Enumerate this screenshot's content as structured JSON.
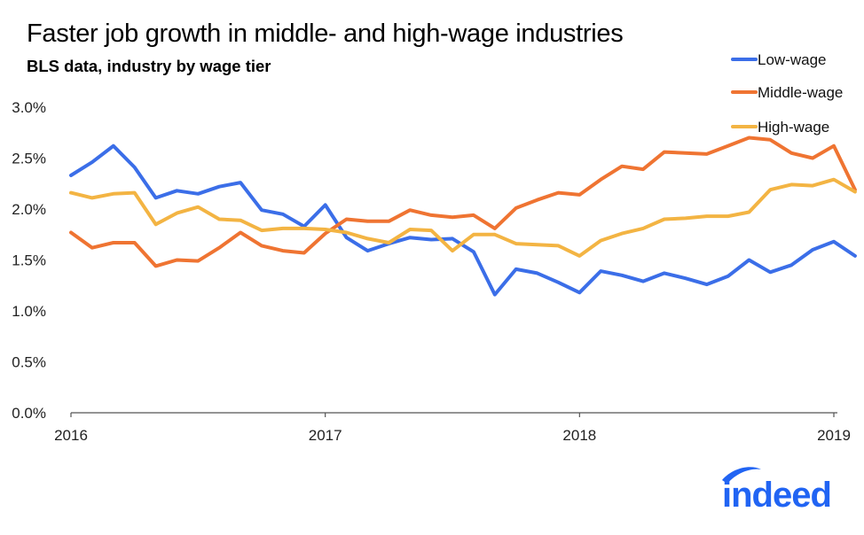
{
  "colors": {
    "low": "#3b6ee8",
    "middle": "#ef7432",
    "high": "#f3b443",
    "logo": "#2164f3"
  },
  "logo": {
    "text": "indeed"
  },
  "chart_data": {
    "type": "line",
    "title": "Faster job growth in middle- and high-wage industries",
    "subtitle": "BLS data, industry by wage tier",
    "xlabel": "",
    "ylabel": "",
    "ylim": [
      0,
      3.0
    ],
    "yticks": [
      0,
      0.5,
      1.0,
      1.5,
      2.0,
      2.5,
      3.0
    ],
    "ytick_labels": [
      "0.0%",
      "0.5%",
      "1.0%",
      "1.5%",
      "2.0%",
      "2.5%",
      "3.0%"
    ],
    "xticks": [
      0,
      12,
      24,
      36
    ],
    "xtick_labels": [
      "2016",
      "2017",
      "2018",
      "2019"
    ],
    "xlim": [
      0,
      37
    ],
    "legend_position": "top-right",
    "series": [
      {
        "name": "Low-wage",
        "color_key": "low",
        "values": [
          2.33,
          2.46,
          2.62,
          2.41,
          2.11,
          2.18,
          2.15,
          2.22,
          2.26,
          1.99,
          1.95,
          1.83,
          2.04,
          1.72,
          1.59,
          1.66,
          1.72,
          1.7,
          1.71,
          1.58,
          1.16,
          1.41,
          1.37,
          1.28,
          1.18,
          1.39,
          1.35,
          1.29,
          1.37,
          1.32,
          1.26,
          1.34,
          1.5,
          1.38,
          1.45,
          1.6,
          1.68,
          1.54
        ]
      },
      {
        "name": "Middle-wage",
        "color_key": "middle",
        "values": [
          1.77,
          1.62,
          1.67,
          1.67,
          1.44,
          1.5,
          1.49,
          1.62,
          1.77,
          1.64,
          1.59,
          1.57,
          1.76,
          1.9,
          1.88,
          1.88,
          1.99,
          1.94,
          1.92,
          1.94,
          1.81,
          2.01,
          2.09,
          2.16,
          2.14,
          2.29,
          2.42,
          2.39,
          2.56,
          2.55,
          2.54,
          2.62,
          2.7,
          2.68,
          2.55,
          2.5,
          2.62,
          2.19
        ]
      },
      {
        "name": "High-wage",
        "color_key": "high",
        "values": [
          2.16,
          2.11,
          2.15,
          2.16,
          1.85,
          1.96,
          2.02,
          1.9,
          1.89,
          1.79,
          1.81,
          1.81,
          1.8,
          1.77,
          1.71,
          1.67,
          1.8,
          1.79,
          1.59,
          1.75,
          1.75,
          1.66,
          1.65,
          1.64,
          1.54,
          1.69,
          1.76,
          1.81,
          1.9,
          1.91,
          1.93,
          1.93,
          1.97,
          2.19,
          2.24,
          2.23,
          2.29,
          2.17
        ]
      }
    ]
  }
}
